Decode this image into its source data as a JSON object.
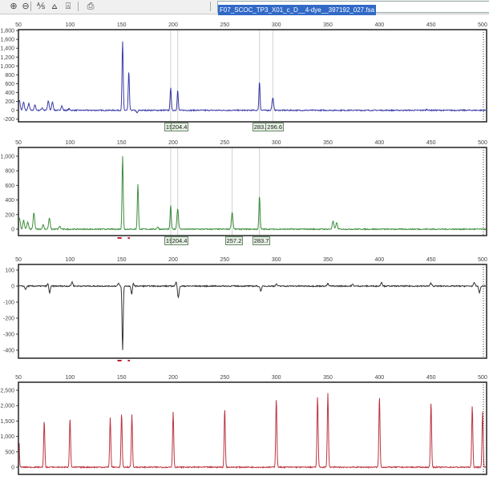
{
  "toolbar": {
    "buttons": [
      {
        "name": "zoom-in-icon",
        "glyph": "⊕"
      },
      {
        "name": "zoom-out-icon",
        "glyph": "⊖"
      },
      {
        "name": "select-peak-icon",
        "glyph": "⅍"
      },
      {
        "name": "show-peaks-icon",
        "glyph": "⩟"
      },
      {
        "name": "show-labels-icon",
        "glyph": "⍓"
      },
      {
        "name": "print-icon",
        "glyph": "⎙"
      }
    ],
    "file_name": "F07_SCOC_TP3_X01_c_D__4-dye__397192_027.fsa"
  },
  "chart_data": [
    {
      "type": "line",
      "color": "#1a1a9a",
      "xlim": [
        50,
        504.5
      ],
      "ylim": [
        -260,
        1820
      ],
      "x_ticks": [
        50,
        100,
        150,
        200,
        250,
        300,
        350,
        400,
        450,
        500
      ],
      "y_ticks": [
        1800,
        1600,
        1400,
        1200,
        1000,
        800,
        600,
        400,
        200,
        0,
        -200
      ],
      "peaks": [
        [
          51,
          220
        ],
        [
          55,
          180
        ],
        [
          60,
          150
        ],
        [
          66,
          120
        ],
        [
          73,
          60
        ],
        [
          79,
          210
        ],
        [
          83,
          190
        ],
        [
          92,
          100
        ],
        [
          99,
          30
        ],
        [
          151,
          1560
        ],
        [
          157,
          870
        ],
        [
          165,
          -60
        ],
        [
          197.6,
          520
        ],
        [
          204.4,
          450
        ],
        [
          283.7,
          650
        ],
        [
          296.6,
          280
        ],
        [
          446,
          20
        ]
      ],
      "marker_lines": [
        197.6,
        204.4,
        283.7,
        296.6
      ],
      "labels": [
        {
          "bp": 197.6,
          "text": "19"
        },
        {
          "bp": 204.4,
          "text": "204.4"
        },
        {
          "bp": 283.7,
          "text": "283.7"
        },
        {
          "bp": 296.6,
          "text": "296.6"
        }
      ]
    },
    {
      "type": "line",
      "color": "#1a7a1a",
      "xlim": [
        50,
        504.5
      ],
      "ylim": [
        -88,
        1120
      ],
      "x_ticks": [
        50,
        100,
        150,
        200,
        250,
        300,
        350,
        400,
        450,
        500
      ],
      "y_ticks": [
        1000,
        800,
        600,
        400,
        200,
        0
      ],
      "peaks": [
        [
          51,
          150
        ],
        [
          55,
          120
        ],
        [
          59,
          100
        ],
        [
          65,
          220
        ],
        [
          74,
          60
        ],
        [
          80,
          150
        ],
        [
          90,
          40
        ],
        [
          151,
          1000
        ],
        [
          165.8,
          620
        ],
        [
          185,
          30
        ],
        [
          197.6,
          330
        ],
        [
          204.4,
          280
        ],
        [
          257.2,
          230
        ],
        [
          283.7,
          460
        ],
        [
          355,
          110
        ],
        [
          358.5,
          90
        ]
      ],
      "marker_lines": [
        197.6,
        204.4,
        257.2,
        283.7
      ],
      "labels": [
        {
          "bp": 197.6,
          "text": "19"
        },
        {
          "bp": 204.4,
          "text": "204.4"
        },
        {
          "bp": 257.2,
          "text": "257.2"
        },
        {
          "bp": 283.7,
          "text": "283.7"
        }
      ],
      "red_markers": [
        [
          146,
          150
        ],
        [
          156,
          158
        ]
      ]
    },
    {
      "type": "line",
      "color": "#111111",
      "xlim": [
        50,
        504.5
      ],
      "ylim": [
        -450,
        135
      ],
      "x_ticks": [
        50,
        100,
        150,
        200,
        250,
        300,
        350,
        400,
        450,
        500
      ],
      "y_ticks": [
        100,
        0,
        -100,
        -200,
        -300,
        -400
      ],
      "peaks": [
        [
          57,
          -20
        ],
        [
          80,
          -50
        ],
        [
          79,
          25
        ],
        [
          102,
          25
        ],
        [
          147,
          15
        ],
        [
          151,
          -400
        ],
        [
          160,
          -60
        ],
        [
          161,
          30
        ],
        [
          205,
          -70
        ],
        [
          203,
          25
        ],
        [
          285,
          -30
        ],
        [
          300,
          12
        ],
        [
          350,
          14
        ],
        [
          374,
          10
        ],
        [
          402,
          25
        ],
        [
          450,
          18
        ],
        [
          492,
          20
        ],
        [
          497,
          -40
        ]
      ],
      "marker_lines": [],
      "labels": [],
      "red_markers": [
        [
          146,
          150
        ],
        [
          156,
          158
        ]
      ]
    },
    {
      "type": "line",
      "color": "#b01020",
      "xlim": [
        50,
        504.5
      ],
      "ylim": [
        -234,
        2760
      ],
      "x_ticks": [
        50,
        100,
        150,
        200,
        250,
        300,
        350,
        400,
        450,
        500
      ],
      "y_ticks": [
        2500,
        2000,
        1500,
        1000,
        500,
        0
      ],
      "peaks": [
        [
          50.2,
          1350
        ],
        [
          75,
          1500
        ],
        [
          100,
          1600
        ],
        [
          139,
          1600
        ],
        [
          150,
          1750
        ],
        [
          160,
          1700
        ],
        [
          200,
          1800
        ],
        [
          250,
          1900
        ],
        [
          300,
          2250
        ],
        [
          340,
          2300
        ],
        [
          350,
          2400
        ],
        [
          400,
          2300
        ],
        [
          450,
          2100
        ],
        [
          490,
          2000
        ],
        [
          500,
          1800
        ]
      ],
      "marker_lines": [],
      "labels": []
    }
  ]
}
